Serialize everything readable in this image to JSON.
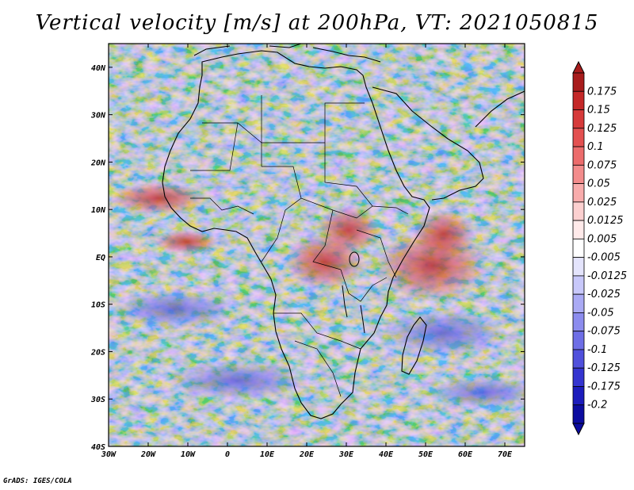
{
  "title": "Vertical velocity [m/s] at 200hPa, VT: 2021050815",
  "credit": "GrADS: IGES/COLA",
  "map": {
    "region": "Africa and Western Indian Ocean",
    "lon_range": [
      -30,
      75
    ],
    "lat_range": [
      -40,
      45
    ],
    "lon_ticks": [
      {
        "value": -30,
        "label": "30W"
      },
      {
        "value": -20,
        "label": "20W"
      },
      {
        "value": -10,
        "label": "10W"
      },
      {
        "value": 0,
        "label": "0"
      },
      {
        "value": 10,
        "label": "10E"
      },
      {
        "value": 20,
        "label": "20E"
      },
      {
        "value": 30,
        "label": "30E"
      },
      {
        "value": 40,
        "label": "40E"
      },
      {
        "value": 50,
        "label": "50E"
      },
      {
        "value": 60,
        "label": "60E"
      },
      {
        "value": 70,
        "label": "70E"
      }
    ],
    "lat_ticks": [
      {
        "value": 40,
        "label": "40N"
      },
      {
        "value": 30,
        "label": "30N"
      },
      {
        "value": 20,
        "label": "20N"
      },
      {
        "value": 10,
        "label": "10N"
      },
      {
        "value": 0,
        "label": "EQ"
      },
      {
        "value": -10,
        "label": "10S"
      },
      {
        "value": -20,
        "label": "20S"
      },
      {
        "value": -30,
        "label": "30S"
      },
      {
        "value": -40,
        "label": "40S"
      }
    ]
  },
  "colorbar": {
    "labels": [
      "0.175",
      "0.15",
      "0.125",
      "0.1",
      "0.075",
      "0.05",
      "0.025",
      "0.0125",
      "0.005",
      "-0.005",
      "-0.0125",
      "-0.025",
      "-0.05",
      "-0.075",
      "-0.1",
      "-0.125",
      "-0.175",
      "-0.2"
    ],
    "colors": [
      "#a81c1c",
      "#c42828",
      "#d63a3a",
      "#e35050",
      "#ec6c6c",
      "#f38c8c",
      "#f8acac",
      "#fcd0d0",
      "#ffeaea",
      "#ffffff",
      "#e4e4fc",
      "#c8c8fa",
      "#aaaaf4",
      "#8c8cee",
      "#6e6ee6",
      "#5050dc",
      "#3434d0",
      "#1c1cbc",
      "#0c0ca0"
    ]
  }
}
